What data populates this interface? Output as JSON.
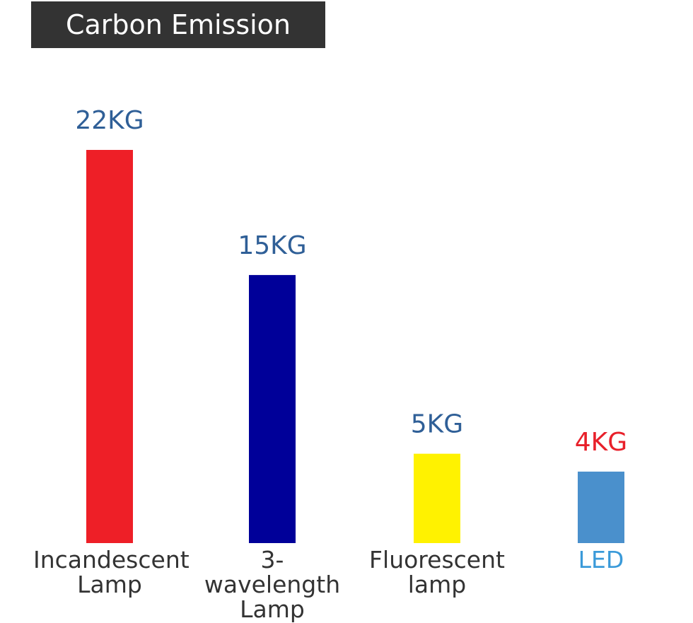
{
  "chart_data": {
    "type": "bar",
    "title": "Carbon Emission",
    "categories": [
      "Incandescent Lamp",
      "3-wavelength Lamp",
      "Fluorescent lamp",
      "LED"
    ],
    "category_colors": [
      "#333333",
      "#333333",
      "#333333",
      "#3a9ad9"
    ],
    "values": [
      22,
      15,
      5,
      4
    ],
    "value_labels": [
      "22KG",
      "15KG",
      "5KG",
      "4KG"
    ],
    "value_label_colors": [
      "#2f5f97",
      "#2f5f97",
      "#2f5f97",
      "#e8202a"
    ],
    "colors": [
      "#ee1f27",
      "#000099",
      "#fff200",
      "#4a90cc"
    ],
    "ylim": [
      0,
      22
    ]
  }
}
